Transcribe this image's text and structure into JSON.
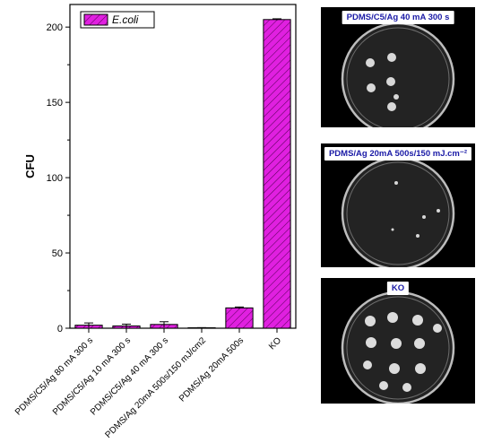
{
  "chart_data": {
    "type": "bar",
    "ylabel": "CFU",
    "xlabel": "",
    "ylim": [
      0,
      215
    ],
    "yticks": [
      0,
      50,
      100,
      150,
      200
    ],
    "categories": [
      "PDMS/C5/Ag 80 mA 300 s",
      "PDMS/C5/Ag 10 mA 300 s",
      "PDMS/C5/Ag 40 mA 300 s",
      "PDMS/Ag 20mA 500s/150 mJ/cm2",
      "PDMS/Ag 20mA 500s",
      "KO"
    ],
    "series": [
      {
        "name": "E.coli",
        "values": [
          2,
          1.5,
          2.5,
          0.3,
          13.5,
          205
        ],
        "errors": [
          1.5,
          1.2,
          1.8,
          0.1,
          0.6,
          0.5
        ],
        "color": "#e020e0",
        "hatch": "diagonal"
      }
    ],
    "legend_position": "top-left",
    "grid": false
  },
  "photos": [
    {
      "label": "PDMS/C5/Ag 40 mA 300 s",
      "colonies": 6
    },
    {
      "label": "PDMS/Ag 20mA 500s/150 mJ.cm⁻²",
      "colonies": 5
    },
    {
      "label": "KO",
      "colonies": 11
    }
  ]
}
